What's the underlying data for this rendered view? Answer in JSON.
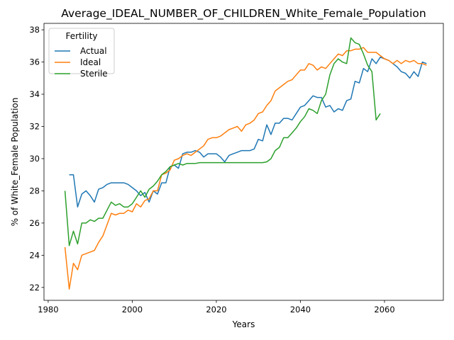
{
  "chart_data": {
    "type": "line",
    "title": "Average_IDEAL_NUMBER_OF_CHILDREN_White_Female_Population",
    "xlabel": "Years",
    "ylabel": "% of White_Female Population",
    "xlim": [
      1979,
      2074
    ],
    "ylim": [
      21.2,
      38.4
    ],
    "xticks": [
      1980,
      2000,
      2020,
      2040,
      2060
    ],
    "yticks": [
      22,
      24,
      26,
      28,
      30,
      32,
      34,
      36,
      38
    ],
    "grid": false,
    "legend": {
      "title": "Fertility",
      "position": "top-left"
    },
    "series": [
      {
        "name": "Actual",
        "color": "#1f77b4",
        "points": [
          [
            1985,
            29.0
          ],
          [
            1986,
            29.0
          ],
          [
            1987,
            27.0
          ],
          [
            1988,
            27.8
          ],
          [
            1989,
            28.0
          ],
          [
            1990,
            27.7
          ],
          [
            1991,
            27.3
          ],
          [
            1992,
            28.1
          ],
          [
            1993,
            28.2
          ],
          [
            1994,
            28.4
          ],
          [
            1995,
            28.5
          ],
          [
            1996,
            28.5
          ],
          [
            1997,
            28.5
          ],
          [
            1998,
            28.5
          ],
          [
            1999,
            28.4
          ],
          [
            2000,
            28.2
          ],
          [
            2001,
            28.0
          ],
          [
            2002,
            27.7
          ],
          [
            2003,
            27.9
          ],
          [
            2004,
            27.3
          ],
          [
            2005,
            28.0
          ],
          [
            2006,
            27.8
          ],
          [
            2007,
            28.5
          ],
          [
            2008,
            28.5
          ],
          [
            2009,
            29.5
          ],
          [
            2010,
            29.6
          ],
          [
            2011,
            29.4
          ],
          [
            2012,
            30.3
          ],
          [
            2013,
            30.4
          ],
          [
            2014,
            30.4
          ],
          [
            2015,
            30.5
          ],
          [
            2016,
            30.4
          ],
          [
            2017,
            30.1
          ],
          [
            2018,
            30.3
          ],
          [
            2019,
            30.3
          ],
          [
            2020,
            30.3
          ],
          [
            2021,
            30.1
          ],
          [
            2022,
            29.8
          ],
          [
            2023,
            30.2
          ],
          [
            2024,
            30.3
          ],
          [
            2025,
            30.4
          ],
          [
            2026,
            30.5
          ],
          [
            2027,
            30.5
          ],
          [
            2028,
            30.5
          ],
          [
            2029,
            30.6
          ],
          [
            2030,
            31.2
          ],
          [
            2031,
            31.1
          ],
          [
            2032,
            32.1
          ],
          [
            2033,
            31.5
          ],
          [
            2034,
            32.2
          ],
          [
            2035,
            32.2
          ],
          [
            2036,
            32.5
          ],
          [
            2037,
            32.5
          ],
          [
            2038,
            32.4
          ],
          [
            2039,
            32.8
          ],
          [
            2040,
            33.2
          ],
          [
            2041,
            33.3
          ],
          [
            2042,
            33.6
          ],
          [
            2043,
            33.9
          ],
          [
            2044,
            33.8
          ],
          [
            2045,
            33.8
          ],
          [
            2046,
            33.2
          ],
          [
            2047,
            33.3
          ],
          [
            2048,
            32.9
          ],
          [
            2049,
            33.1
          ],
          [
            2050,
            33.0
          ],
          [
            2051,
            33.6
          ],
          [
            2052,
            33.7
          ],
          [
            2053,
            34.8
          ],
          [
            2054,
            34.7
          ],
          [
            2055,
            35.6
          ],
          [
            2056,
            35.4
          ],
          [
            2057,
            36.2
          ],
          [
            2058,
            35.9
          ],
          [
            2059,
            36.3
          ],
          [
            2060,
            36.2
          ],
          [
            2061,
            36.1
          ],
          [
            2062,
            35.9
          ],
          [
            2063,
            35.7
          ],
          [
            2064,
            35.4
          ],
          [
            2065,
            35.3
          ],
          [
            2066,
            35.0
          ],
          [
            2067,
            35.4
          ],
          [
            2068,
            35.1
          ],
          [
            2069,
            36.0
          ],
          [
            2070,
            35.9
          ]
        ]
      },
      {
        "name": "Ideal",
        "color": "#ff7f0e",
        "points": [
          [
            1984,
            24.5
          ],
          [
            1985,
            21.9
          ],
          [
            1986,
            23.5
          ],
          [
            1987,
            23.1
          ],
          [
            1988,
            24.0
          ],
          [
            1989,
            24.1
          ],
          [
            1990,
            24.2
          ],
          [
            1991,
            24.3
          ],
          [
            1992,
            24.8
          ],
          [
            1993,
            25.2
          ],
          [
            1994,
            25.9
          ],
          [
            1995,
            26.6
          ],
          [
            1996,
            26.5
          ],
          [
            1997,
            26.6
          ],
          [
            1998,
            26.6
          ],
          [
            1999,
            26.8
          ],
          [
            2000,
            26.7
          ],
          [
            2001,
            27.2
          ],
          [
            2002,
            27.0
          ],
          [
            2003,
            27.4
          ],
          [
            2004,
            27.5
          ],
          [
            2005,
            28.0
          ],
          [
            2006,
            28.0
          ],
          [
            2007,
            29.0
          ],
          [
            2008,
            29.1
          ],
          [
            2009,
            29.3
          ],
          [
            2010,
            29.9
          ],
          [
            2011,
            30.0
          ],
          [
            2012,
            30.2
          ],
          [
            2013,
            30.3
          ],
          [
            2014,
            30.2
          ],
          [
            2015,
            30.4
          ],
          [
            2016,
            30.6
          ],
          [
            2017,
            30.8
          ],
          [
            2018,
            31.2
          ],
          [
            2019,
            31.3
          ],
          [
            2020,
            31.3
          ],
          [
            2021,
            31.4
          ],
          [
            2022,
            31.6
          ],
          [
            2023,
            31.8
          ],
          [
            2024,
            31.9
          ],
          [
            2025,
            32.0
          ],
          [
            2026,
            31.7
          ],
          [
            2027,
            32.1
          ],
          [
            2028,
            32.2
          ],
          [
            2029,
            32.4
          ],
          [
            2030,
            32.8
          ],
          [
            2031,
            32.9
          ],
          [
            2032,
            33.3
          ],
          [
            2033,
            33.6
          ],
          [
            2034,
            34.2
          ],
          [
            2035,
            34.4
          ],
          [
            2036,
            34.6
          ],
          [
            2037,
            34.8
          ],
          [
            2038,
            34.9
          ],
          [
            2039,
            35.2
          ],
          [
            2040,
            35.5
          ],
          [
            2041,
            35.5
          ],
          [
            2042,
            35.9
          ],
          [
            2043,
            35.8
          ],
          [
            2044,
            35.5
          ],
          [
            2045,
            35.7
          ],
          [
            2046,
            35.6
          ],
          [
            2047,
            35.9
          ],
          [
            2048,
            36.2
          ],
          [
            2049,
            36.5
          ],
          [
            2050,
            36.4
          ],
          [
            2051,
            36.7
          ],
          [
            2052,
            36.7
          ],
          [
            2053,
            36.8
          ],
          [
            2054,
            36.8
          ],
          [
            2055,
            36.9
          ],
          [
            2056,
            36.6
          ],
          [
            2057,
            36.6
          ],
          [
            2058,
            36.6
          ],
          [
            2059,
            36.4
          ],
          [
            2060,
            36.2
          ],
          [
            2061,
            36.1
          ],
          [
            2062,
            35.9
          ],
          [
            2063,
            36.1
          ],
          [
            2064,
            35.9
          ],
          [
            2065,
            36.1
          ],
          [
            2066,
            36.0
          ],
          [
            2067,
            36.1
          ],
          [
            2068,
            35.9
          ],
          [
            2069,
            35.9
          ],
          [
            2070,
            35.8
          ]
        ]
      },
      {
        "name": "Sterile",
        "color": "#2ca02c",
        "points": [
          [
            1984,
            28.0
          ],
          [
            1985,
            24.6
          ],
          [
            1986,
            25.5
          ],
          [
            1987,
            24.7
          ],
          [
            1988,
            26.0
          ],
          [
            1989,
            26.0
          ],
          [
            1990,
            26.2
          ],
          [
            1991,
            26.1
          ],
          [
            1992,
            26.3
          ],
          [
            1993,
            26.3
          ],
          [
            1994,
            26.8
          ],
          [
            1995,
            27.3
          ],
          [
            1996,
            27.1
          ],
          [
            1997,
            27.2
          ],
          [
            1998,
            27.0
          ],
          [
            1999,
            27.0
          ],
          [
            2000,
            27.2
          ],
          [
            2001,
            27.6
          ],
          [
            2002,
            28.0
          ],
          [
            2003,
            27.6
          ],
          [
            2004,
            28.1
          ],
          [
            2005,
            28.3
          ],
          [
            2006,
            28.6
          ],
          [
            2007,
            29.0
          ],
          [
            2008,
            29.2
          ],
          [
            2009,
            29.5
          ],
          [
            2010,
            29.6
          ],
          [
            2011,
            29.7
          ],
          [
            2012,
            29.6
          ],
          [
            2013,
            29.7
          ],
          [
            2014,
            29.7
          ],
          [
            2015,
            29.7
          ],
          [
            2016,
            29.75
          ],
          [
            2017,
            29.75
          ],
          [
            2018,
            29.75
          ],
          [
            2019,
            29.75
          ],
          [
            2020,
            29.75
          ],
          [
            2021,
            29.75
          ],
          [
            2022,
            29.75
          ],
          [
            2023,
            29.75
          ],
          [
            2024,
            29.75
          ],
          [
            2025,
            29.75
          ],
          [
            2026,
            29.75
          ],
          [
            2027,
            29.75
          ],
          [
            2028,
            29.75
          ],
          [
            2029,
            29.75
          ],
          [
            2030,
            29.75
          ],
          [
            2031,
            29.75
          ],
          [
            2032,
            29.8
          ],
          [
            2033,
            30.0
          ],
          [
            2034,
            30.5
          ],
          [
            2035,
            30.7
          ],
          [
            2036,
            31.3
          ],
          [
            2037,
            31.3
          ],
          [
            2038,
            31.6
          ],
          [
            2039,
            31.9
          ],
          [
            2040,
            32.3
          ],
          [
            2041,
            32.6
          ],
          [
            2042,
            33.1
          ],
          [
            2043,
            33.0
          ],
          [
            2044,
            32.8
          ],
          [
            2045,
            33.6
          ],
          [
            2046,
            34.0
          ],
          [
            2047,
            35.2
          ],
          [
            2048,
            35.9
          ],
          [
            2049,
            36.2
          ],
          [
            2050,
            36.0
          ],
          [
            2051,
            35.9
          ],
          [
            2052,
            37.5
          ],
          [
            2053,
            37.2
          ],
          [
            2054,
            37.1
          ],
          [
            2055,
            36.5
          ],
          [
            2056,
            35.8
          ],
          [
            2057,
            35.4
          ],
          [
            2058,
            32.4
          ],
          [
            2059,
            32.8
          ]
        ]
      }
    ]
  }
}
